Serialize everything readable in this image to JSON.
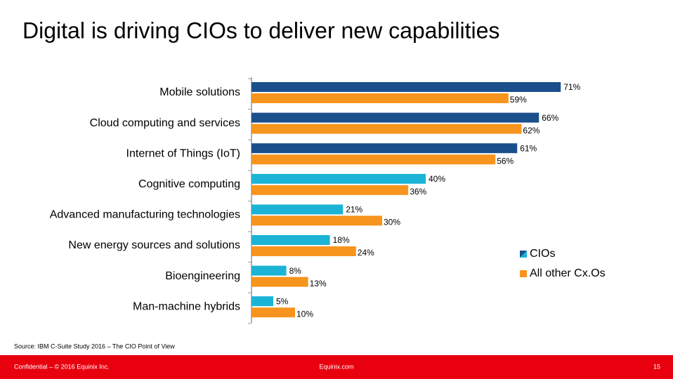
{
  "chart_data": {
    "type": "hbar",
    "title": "Digital is driving CIOs to deliver new capabilities",
    "categories": [
      "Mobile solutions",
      "Cloud computing and services",
      "Internet of Things (IoT)",
      "Cognitive computing",
      "Advanced manufacturing technologies",
      "New energy sources and solutions",
      "Bioengineering",
      "Man-machine hybrids"
    ],
    "series": [
      {
        "name": "CIOs",
        "color": "#1bb4d6",
        "colors": [
          "#1b4f8c",
          "#1b4f8c",
          "#1b4f8c",
          "#1bb4d6",
          "#1bb4d6",
          "#1bb4d6",
          "#1bb4d6",
          "#1bb4d6"
        ],
        "values": [
          71,
          66,
          61,
          40,
          21,
          18,
          8,
          5
        ],
        "value_labels": [
          "71%",
          "66%",
          "61%",
          "40%",
          "21%",
          "18%",
          "8%",
          "5%"
        ]
      },
      {
        "name": "All other Cx.Os",
        "color": "#f7941d",
        "values": [
          59,
          62,
          56,
          36,
          30,
          24,
          13,
          10
        ],
        "value_labels": [
          "59%",
          "62%",
          "56%",
          "36%",
          "30%",
          "24%",
          "13%",
          "10%"
        ]
      }
    ]
  },
  "source": "Source: IBM C-Suite Study 2016 – The CIO Point of View",
  "footer": {
    "left": "Confidential – © 2016 Equinix Inc.",
    "center": "Equinix.com",
    "page": "15"
  }
}
